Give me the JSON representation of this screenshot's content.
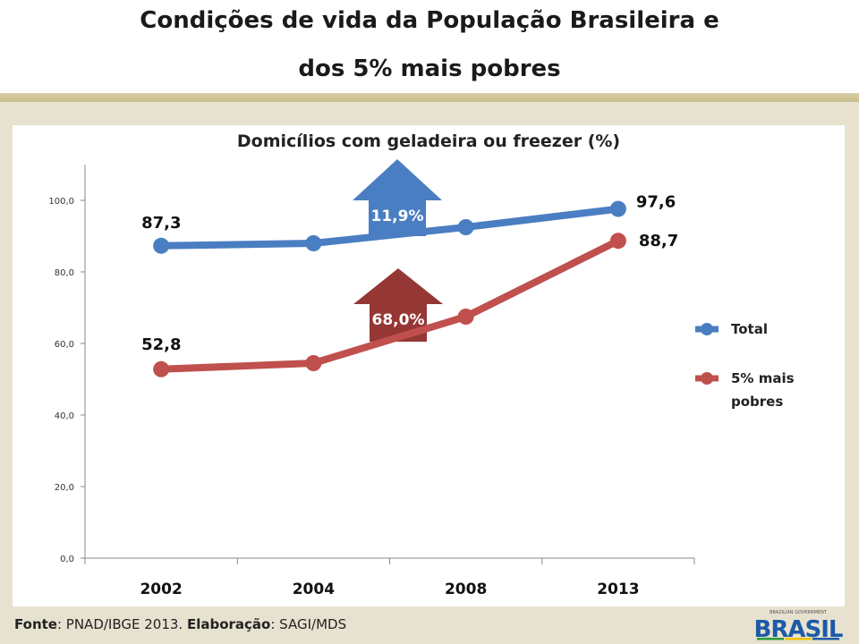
{
  "slide": {
    "title_line1": "Condições de vida da População Brasileira e",
    "title_line2": "dos 5% mais pobres"
  },
  "footer": {
    "fonte_label": "Fonte",
    "fonte_text": ": PNAD/IBGE 2013. ",
    "elab_label": "Elaboração",
    "elab_text": ": SAGI/MDS"
  },
  "logo": {
    "top_text": "BRAZILIAN GOVERNMENT",
    "word": "BRASIL",
    "colors": [
      "#2b9a3c",
      "#f2c200",
      "#1d5aa8"
    ]
  },
  "chart_data": {
    "type": "line",
    "title": "Domicílios com geladeira ou freezer (%)",
    "categories": [
      "2002",
      "2004",
      "2008",
      "2013"
    ],
    "ylim": [
      0,
      110
    ],
    "yticks": [
      0,
      20,
      40,
      60,
      80,
      100
    ],
    "ytick_labels": [
      "0,0",
      "20,0",
      "40,0",
      "60,0",
      "80,0",
      "100,0"
    ],
    "grid": false,
    "legend_position": "right",
    "series": [
      {
        "name": "Total",
        "values": [
          87.3,
          88.0,
          92.5,
          97.6
        ],
        "color": "#4a7ec2",
        "labels": [
          "87,3",
          "",
          "",
          "97,6"
        ]
      },
      {
        "name": "5% mais pobres",
        "values": [
          52.8,
          54.5,
          67.5,
          88.7
        ],
        "color": "#c0504d",
        "labels": [
          "52,8",
          "",
          "",
          "88,7"
        ]
      }
    ],
    "annotations": [
      {
        "text": "11,9%",
        "color": "#4a7ec2",
        "series": "Total"
      },
      {
        "text": "68,0%",
        "color": "#953735",
        "series": "5% mais pobres"
      }
    ]
  }
}
